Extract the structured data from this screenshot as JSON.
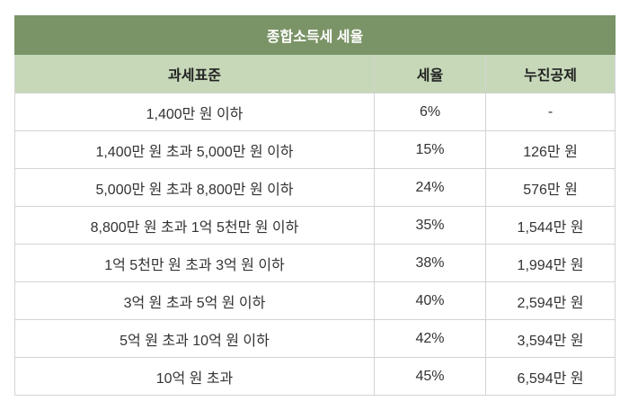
{
  "table": {
    "title": "종합소득세 세율",
    "header": [
      "과세표준",
      "세율",
      "누진공제"
    ],
    "rows": [
      [
        "1,400만 원 이하",
        "6%",
        "-"
      ],
      [
        "1,400만 원 초과 5,000만 원 이하",
        "15%",
        "126만 원"
      ],
      [
        "5,000만 원 초과 8,800만 원 이하",
        "24%",
        "576만 원"
      ],
      [
        "8,800만 원 초과 1억 5천만 원 이하",
        "35%",
        "1,544만 원"
      ],
      [
        "1억 5천만 원 초과 3억 원 이하",
        "38%",
        "1,994만 원"
      ],
      [
        "3억 원 초과 5억 원 이하",
        "40%",
        "2,594만 원"
      ],
      [
        "5억 원 초과 10억 원 이하",
        "42%",
        "3,594만 원"
      ],
      [
        "10억 원 초과",
        "45%",
        "6,594만 원"
      ]
    ]
  }
}
